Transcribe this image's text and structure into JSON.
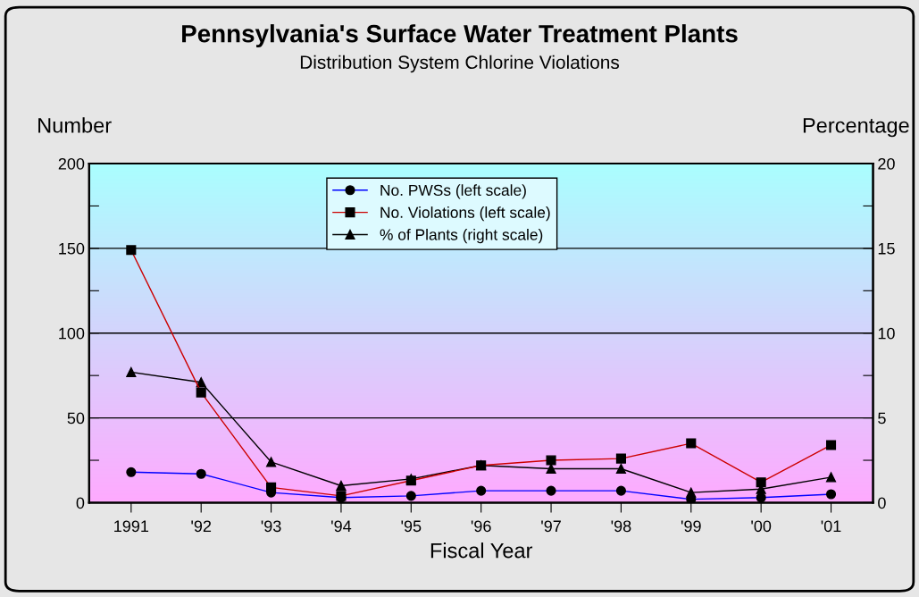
{
  "chart_data": {
    "type": "line",
    "title": "Pennsylvania's Surface Water Treatment Plants",
    "subtitle": "Distribution System Chlorine Violations",
    "xlabel": "Fiscal Year",
    "ylabel": "Number",
    "y2label": "Percentage",
    "categories": [
      "1991",
      "'92",
      "'93",
      "'94",
      "'95",
      "'96",
      "'97",
      "'98",
      "'99",
      "'00",
      "'01"
    ],
    "series": [
      {
        "name": "No. PWSs (left scale)",
        "color": "#0000ff",
        "marker": "circle",
        "values": [
          18,
          17,
          6,
          3,
          4,
          7,
          7,
          7,
          2,
          3,
          5
        ]
      },
      {
        "name": "No. Violations (left scale)",
        "color": "#cc0000",
        "marker": "square",
        "values": [
          149,
          65,
          9,
          4,
          13,
          22,
          25,
          26,
          35,
          12,
          34
        ]
      },
      {
        "name": "% of Plants (right scale)",
        "color": "#000000",
        "marker": "triangle",
        "axis": "y2",
        "values": [
          7.7,
          7.1,
          2.4,
          1.0,
          1.4,
          2.2,
          2.0,
          2.0,
          0.6,
          0.8,
          1.5
        ]
      }
    ],
    "ylim": [
      0,
      200
    ],
    "yticks": [
      0,
      {
        "value": 25,
        "label": null
      },
      50,
      {
        "value": 75,
        "label": null
      },
      100,
      {
        "value": 125,
        "label": null
      },
      150,
      {
        "value": 175,
        "label": null
      },
      200
    ],
    "y2lim": [
      0,
      20
    ],
    "y2ticks": [
      0,
      {
        "value": 2.5,
        "label": null
      },
      5,
      {
        "value": 7.5,
        "label": null
      },
      10,
      {
        "value": 12.5,
        "label": null
      },
      15,
      {
        "value": 17.5,
        "label": null
      },
      20
    ],
    "grid": "y",
    "legend": "top",
    "line_style": "solid"
  }
}
